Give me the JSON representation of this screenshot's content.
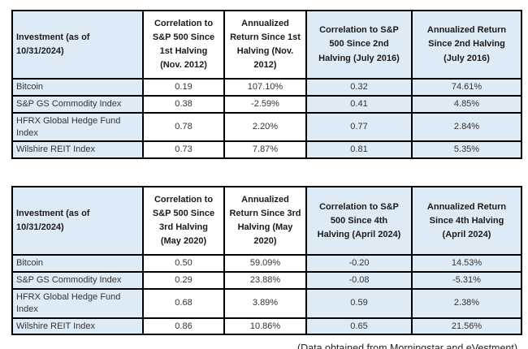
{
  "page": {
    "caption": "(Data obtained from Morningstar and eVestment)"
  },
  "colors": {
    "shaded_cell": "#DDEBF7",
    "border": "#000000",
    "header_text": "#1a1a1a",
    "body_text": "#333333"
  },
  "tables": [
    {
      "name": "halving-1-2-table",
      "headers": [
        "Investment (as of\n10/31/2024)",
        "Correlation to\nS&P 500 Since\n1st Halving\n(Nov. 2012)",
        "Annualized\nReturn Since 1st\nHalving (Nov.\n2012)",
        "Correlation to S&P\n500 Since 2nd\nHalving (July 2016)",
        "Annualized Return\nSince 2nd Halving\n(July 2016)"
      ],
      "rows": [
        {
          "label": "Bitcoin",
          "values": [
            "0.19",
            "107.10%",
            "0.32",
            "74.61%"
          ]
        },
        {
          "label": "S&P GS Commodity Index",
          "values": [
            "0.38",
            "-2.59%",
            "0.41",
            "4.85%"
          ]
        },
        {
          "label": "HFRX Global Hedge Fund Index",
          "values": [
            "0.78",
            "2.20%",
            "0.77",
            "2.84%"
          ]
        },
        {
          "label": "Wilshire REIT Index",
          "values": [
            "0.73",
            "7.87%",
            "0.81",
            "5.35%"
          ]
        }
      ]
    },
    {
      "name": "halving-3-4-table",
      "headers": [
        "Investment (as of\n10/31/2024)",
        "Correlation to\nS&P 500 Since\n3rd Halving\n(May 2020)",
        "Annualized\nReturn Since 3rd\nHalving (May\n2020)",
        "Correlation to S&P\n500 Since 4th\nHalving (April 2024)",
        "Annualized Return\nSince 4th Halving\n(April 2024)"
      ],
      "rows": [
        {
          "label": "Bitcoin",
          "values": [
            "0.50",
            "59.09%",
            "-0.20",
            "14.53%"
          ]
        },
        {
          "label": "S&P GS Commodity Index",
          "values": [
            "0.29",
            "23.88%",
            "-0.08",
            "-5.31%"
          ]
        },
        {
          "label": "HFRX Global Hedge Fund Index",
          "values": [
            "0.68",
            "3.89%",
            "0.59",
            "2.38%"
          ]
        },
        {
          "label": "Wilshire REIT Index",
          "values": [
            "0.86",
            "10.86%",
            "0.65",
            "21.56%"
          ]
        }
      ]
    }
  ]
}
